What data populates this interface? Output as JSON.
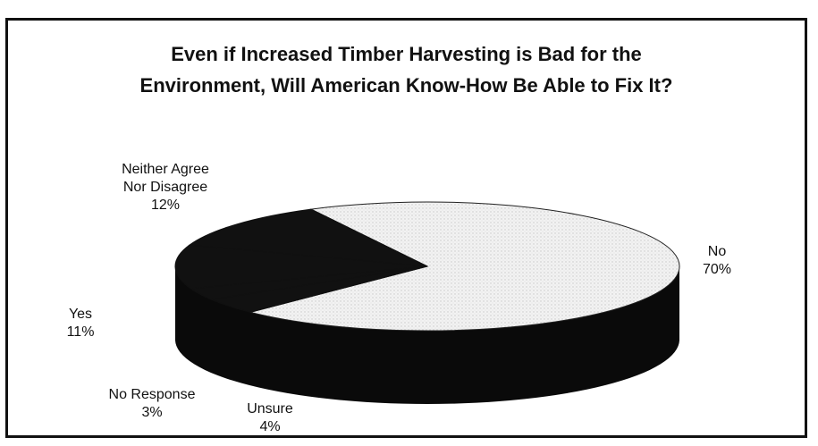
{
  "chart_data": {
    "type": "pie",
    "title_line1": "Even if Increased Timber Harvesting is Bad for the",
    "title_line2": "Environment, Will American Know-How Be Able to Fix It?",
    "slices": [
      {
        "label_line1": "No",
        "label_line2": "",
        "pct_label": "70%",
        "value": 70
      },
      {
        "label_line1": "Unsure",
        "label_line2": "",
        "pct_label": "4%",
        "value": 4
      },
      {
        "label_line1": "No Response",
        "label_line2": "",
        "pct_label": "3%",
        "value": 3
      },
      {
        "label_line1": "Yes",
        "label_line2": "",
        "pct_label": "11%",
        "value": 11
      },
      {
        "label_line1": "Neither Agree",
        "label_line2": "Nor Disagree",
        "pct_label": "12%",
        "value": 12
      }
    ],
    "colors": {
      "light": "#f0f0f0",
      "dark": "#111111",
      "rim": "#0a0a0a"
    }
  }
}
